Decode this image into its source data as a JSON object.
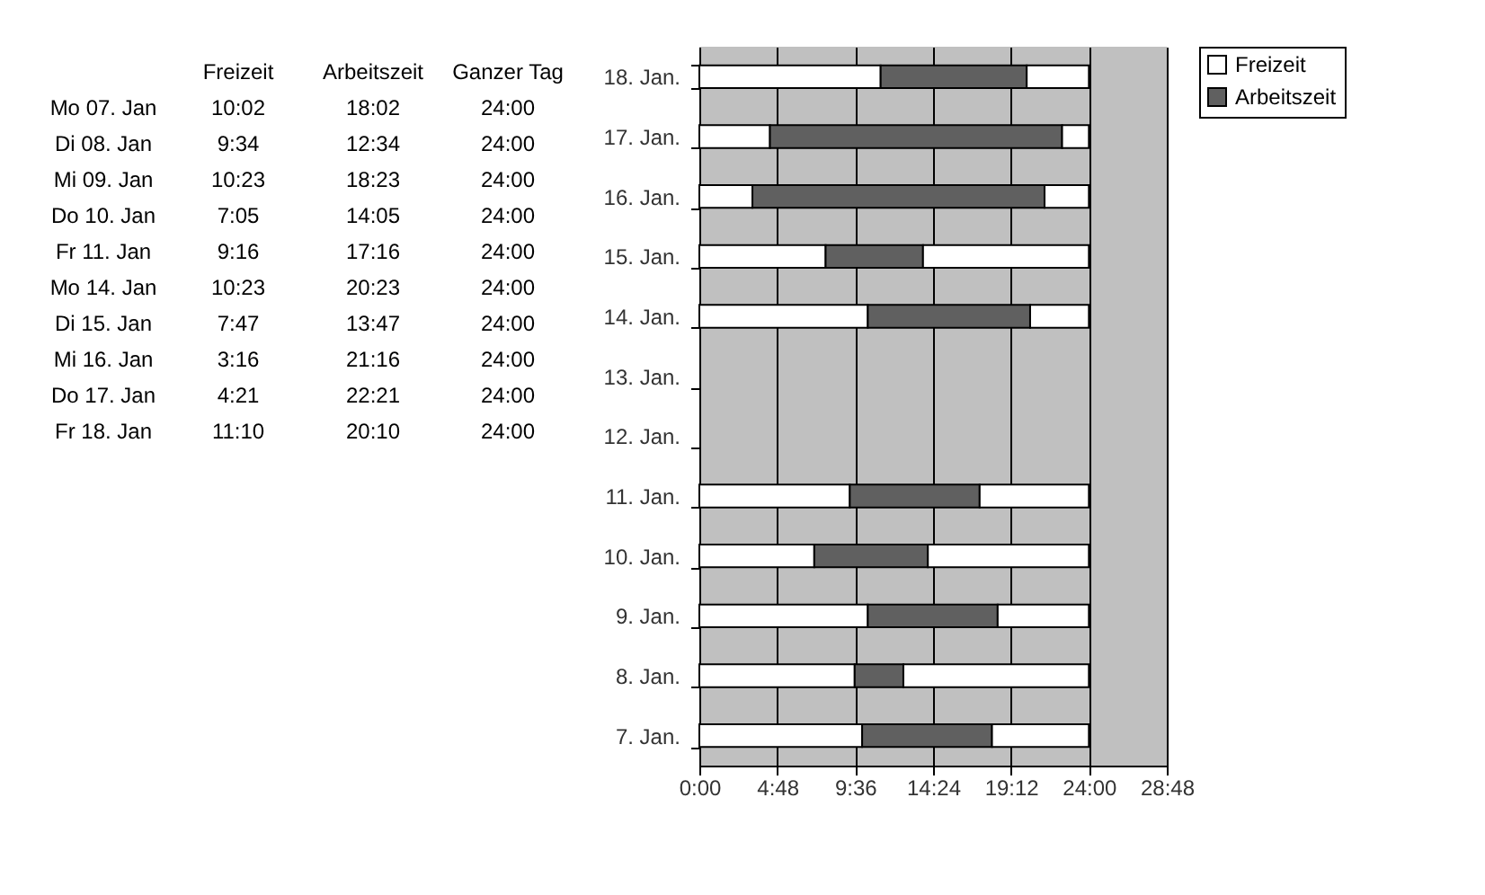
{
  "chart_data": [
    {
      "type": "other",
      "categories": [
        "Freizeit",
        "Arbeitszeit",
        "Ganzer Tag"
      ],
      "y_categories": [
        "Mo 07. Jan",
        "Di 08. Jan",
        "Mi 09. Jan",
        "Do 10. Jan",
        "Fr 11. Jan",
        "Mo 14. Jan",
        "Di 15. Jan",
        "Mi 16. Jan",
        "Do 17. Jan",
        "Fr 18. Jan"
      ],
      "cell_labels": [
        [
          "10:02",
          "18:02",
          "24:00"
        ],
        [
          "9:34",
          "12:34",
          "24:00"
        ],
        [
          "10:23",
          "18:23",
          "24:00"
        ],
        [
          "7:05",
          "14:05",
          "24:00"
        ],
        [
          "9:16",
          "17:16",
          "24:00"
        ],
        [
          "10:23",
          "20:23",
          "24:00"
        ],
        [
          "7:47",
          "13:47",
          "24:00"
        ],
        [
          "3:16",
          "21:16",
          "24:00"
        ],
        [
          "4:21",
          "22:21",
          "24:00"
        ],
        [
          "11:10",
          "20:10",
          "24:00"
        ]
      ]
    },
    {
      "type": "bar",
      "orientation": "horizontal",
      "stacked": true,
      "categories": [
        "18. Jan.",
        "17. Jan.",
        "16. Jan.",
        "15. Jan.",
        "14. Jan.",
        "13. Jan.",
        "12. Jan.",
        "11. Jan.",
        "10. Jan.",
        "9. Jan.",
        "8. Jan.",
        "7. Jan."
      ],
      "series": [
        {
          "name": "Freizeit",
          "color": "#ffffff",
          "values": [
            11.17,
            4.35,
            3.27,
            7.78,
            10.38,
            null,
            null,
            9.27,
            7.08,
            10.38,
            9.57,
            10.03
          ]
        },
        {
          "name": "Arbeitszeit",
          "color": "#606060",
          "values": [
            9.0,
            18.0,
            18.0,
            6.0,
            10.0,
            null,
            null,
            8.0,
            7.0,
            8.0,
            3.0,
            8.0
          ]
        },
        {
          "color": "#ffffff",
          "values": [
            3.83,
            1.65,
            2.73,
            10.22,
            3.62,
            null,
            null,
            6.73,
            9.92,
            5.62,
            11.43,
            5.97
          ]
        }
      ],
      "xlim": [
        0,
        28.8
      ],
      "xticks": [
        {
          "value": 0,
          "label": "0:00"
        },
        {
          "value": 4.8,
          "label": "4:48"
        },
        {
          "value": 9.6,
          "label": "9:36"
        },
        {
          "value": 14.4,
          "label": "14:24"
        },
        {
          "value": 19.2,
          "label": "19:12"
        },
        {
          "value": 24,
          "label": "24:00"
        },
        {
          "value": 28.8,
          "label": "28:48"
        }
      ],
      "grid": "x",
      "legend": "right"
    }
  ]
}
